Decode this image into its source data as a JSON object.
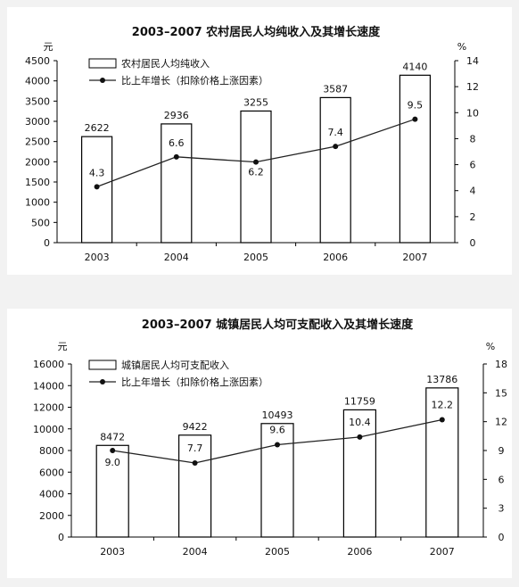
{
  "chart_data": [
    {
      "type": "bar+line",
      "title": "2003–2007 农村居民人均纯收入及其增长速度",
      "left_unit": "元",
      "right_unit": "%",
      "categories": [
        "2003",
        "2004",
        "2005",
        "2006",
        "2007"
      ],
      "series": [
        {
          "name": "农村居民人均纯收入",
          "type": "bar",
          "axis": "left",
          "values": [
            2622,
            2936,
            3255,
            3587,
            4140
          ]
        },
        {
          "name": "比上年增长（扣除价格上涨因素）",
          "type": "line",
          "axis": "right",
          "values": [
            4.3,
            6.6,
            6.2,
            7.4,
            9.5
          ]
        }
      ],
      "left_ticks": [
        "0",
        "500",
        "1000",
        "1500",
        "2000",
        "2500",
        "3000",
        "3500",
        "4000",
        "4500"
      ],
      "right_ticks": [
        "0",
        "2",
        "4",
        "6",
        "8",
        "10",
        "12",
        "14"
      ],
      "ylim_left": [
        0,
        4500
      ],
      "ylim_right": [
        0,
        14
      ],
      "bar_labels": [
        "2622",
        "2936",
        "3255",
        "3587",
        "4140"
      ],
      "line_labels": [
        "4.3",
        "6.6",
        "6.2",
        "7.4",
        "9.5"
      ],
      "legend_position": "top-left"
    },
    {
      "type": "bar+line",
      "title": "2003–2007 城镇居民人均可支配收入及其增长速度",
      "left_unit": "元",
      "right_unit": "%",
      "categories": [
        "2003",
        "2004",
        "2005",
        "2006",
        "2007"
      ],
      "series": [
        {
          "name": "城镇居民人均可支配收入",
          "type": "bar",
          "axis": "left",
          "values": [
            8472,
            9422,
            10493,
            11759,
            13786
          ]
        },
        {
          "name": "比上年增长（扣除价格上涨因素）",
          "type": "line",
          "axis": "right",
          "values": [
            9.0,
            7.7,
            9.6,
            10.4,
            12.2
          ]
        }
      ],
      "left_ticks": [
        "0",
        "2000",
        "4000",
        "6000",
        "8000",
        "10000",
        "12000",
        "14000",
        "16000"
      ],
      "right_ticks": [
        "0",
        "3",
        "6",
        "9",
        "12",
        "15",
        "18"
      ],
      "ylim_left": [
        0,
        16000
      ],
      "ylim_right": [
        0,
        18
      ],
      "bar_labels": [
        "8472",
        "9422",
        "10493",
        "11759",
        "13786"
      ],
      "line_labels": [
        "9.0",
        "7.7",
        "9.6",
        "10.4",
        "12.2"
      ],
      "legend_position": "top-left"
    }
  ]
}
